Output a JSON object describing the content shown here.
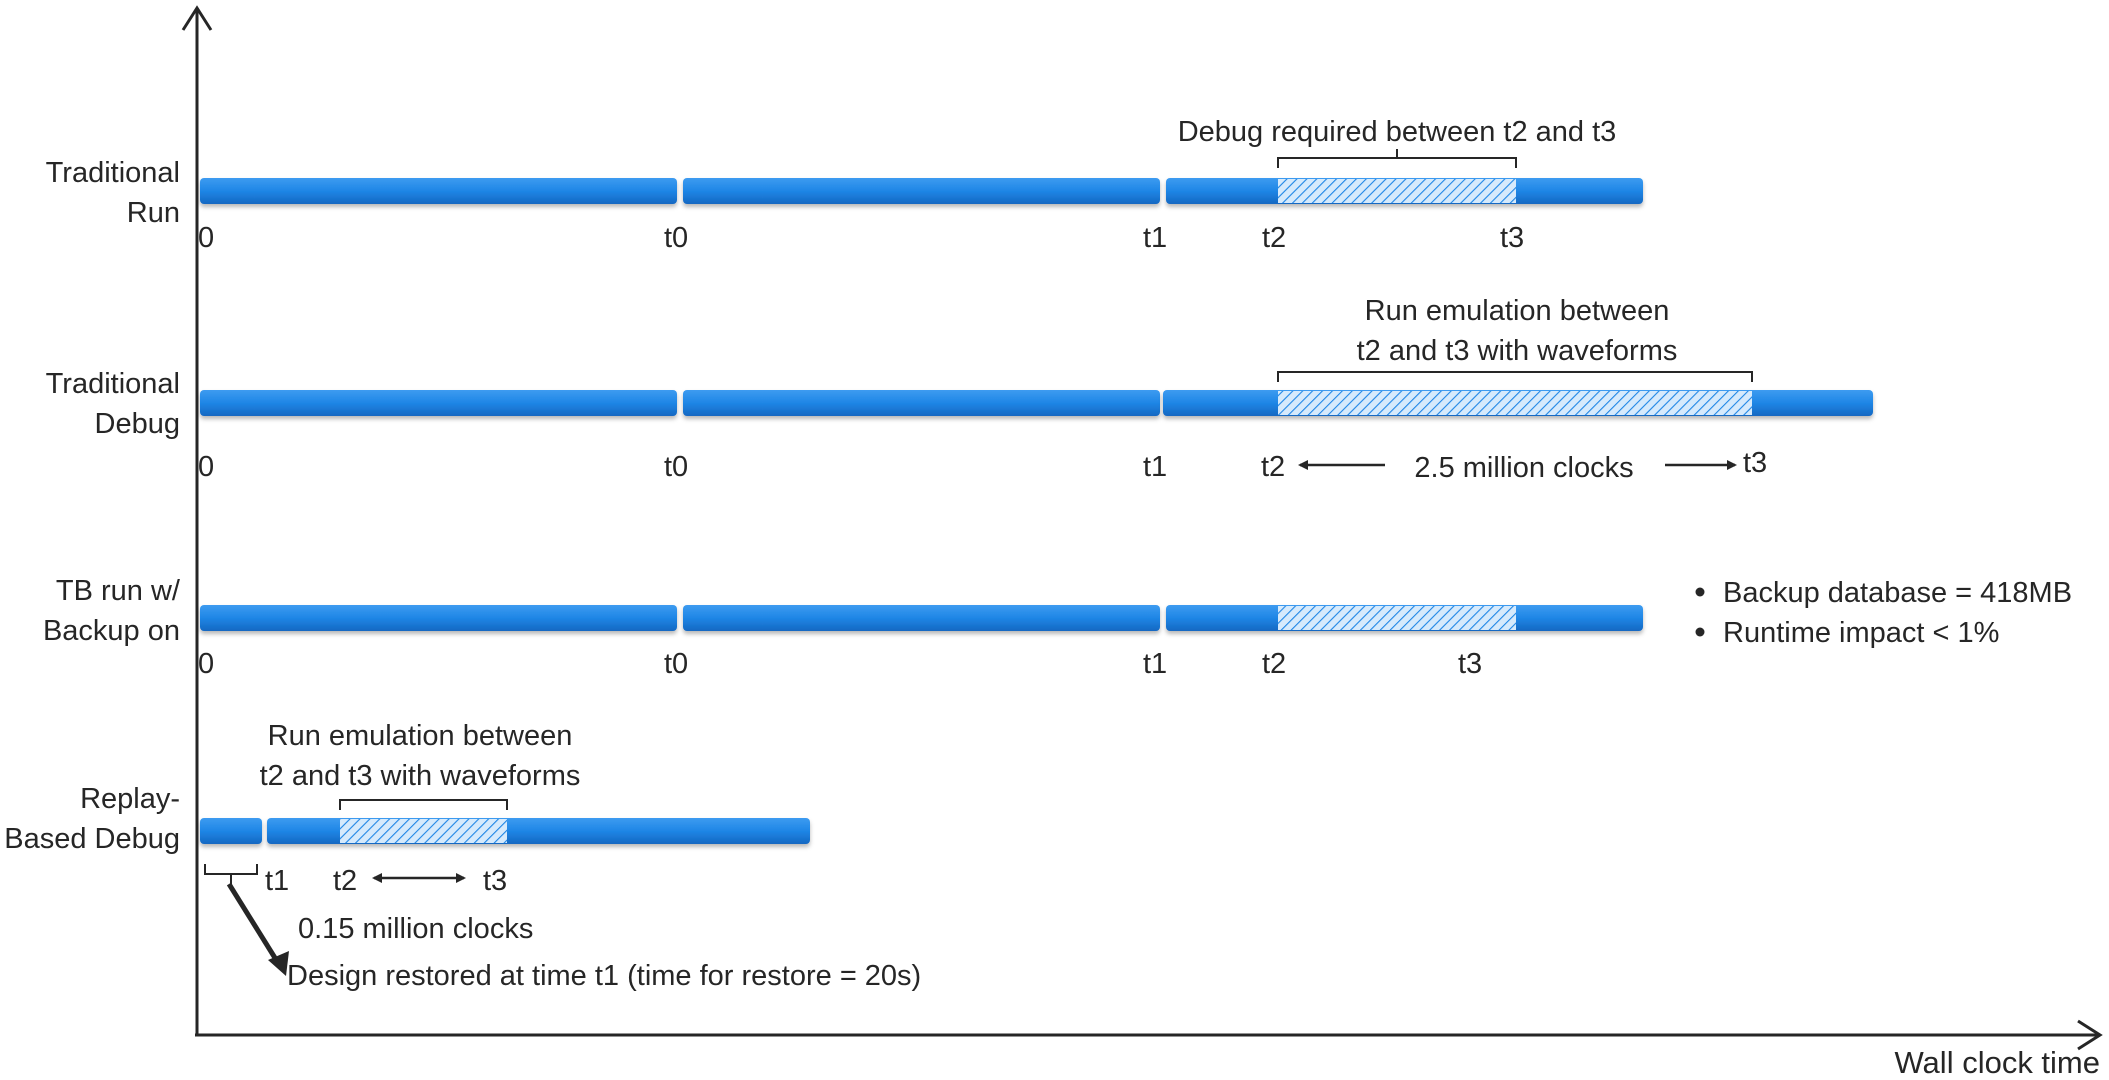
{
  "axis": {
    "x_title": "Wall clock time"
  },
  "rows": {
    "traditional_run": {
      "label_line1": "Traditional",
      "label_line2": "Run",
      "annotation": "Debug required between t2 and t3",
      "ticks": [
        "0",
        "t0",
        "t1",
        "t2",
        "t3"
      ]
    },
    "traditional_debug": {
      "label_line1": "Traditional",
      "label_line2": "Debug",
      "annotation_line1": "Run emulation between",
      "annotation_line2": "t2 and t3 with waveforms",
      "ticks": [
        "0",
        "t0",
        "t1",
        "t2",
        "t3"
      ],
      "span_label": "2.5 million clocks"
    },
    "tb_backup": {
      "label_line1": "TB run w/",
      "label_line2": "Backup on",
      "ticks": [
        "0",
        "t0",
        "t1",
        "t2",
        "t3"
      ],
      "notes": [
        "Backup database = 418MB",
        "Runtime impact < 1%"
      ]
    },
    "replay": {
      "label_line1": "Replay-",
      "label_line2": "Based Debug",
      "annotation_line1": "Run emulation between",
      "annotation_line2": "t2 and t3 with waveforms",
      "ticks": [
        "t1",
        "t2",
        "t3"
      ],
      "span_label": "0.15 million clocks",
      "restore_note": "Design restored at time t1 (time for restore = 20s)"
    }
  },
  "colors": {
    "bar": "#1f86e6",
    "bar_dark": "#1565c0",
    "hatch_bg": "#cfe6fb",
    "hatch_line": "#1f86e6",
    "text": "#262626",
    "axis": "#262626"
  }
}
